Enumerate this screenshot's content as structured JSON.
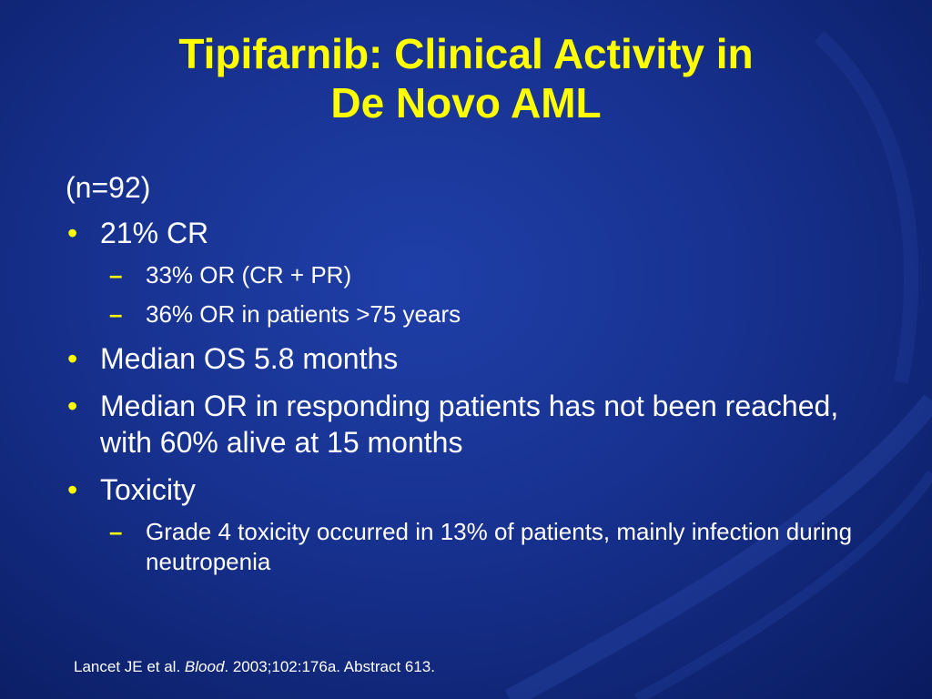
{
  "slide": {
    "title_line1": "Tipifarnib: Clinical Activity in",
    "title_line2": "De Novo AML",
    "intro": "(n=92)",
    "bullets": [
      {
        "text": "21% CR",
        "subitems": [
          "33% OR (CR + PR)",
          "36% OR in patients >75 years"
        ]
      },
      {
        "text": "Median OS 5.8 months"
      },
      {
        "text": "Median OR in responding patients has not been reached, with 60% alive at 15 months"
      },
      {
        "text": "Toxicity",
        "subitems": [
          "Grade 4 toxicity occurred in 13% of patients, mainly infection during neutropenia"
        ]
      }
    ],
    "bullet_glyph": "•",
    "dash_glyph": "–",
    "citation": {
      "authors": "Lancet JE et al.",
      "journal": "Blood",
      "details": ". 2003;102:176a. Abstract 613."
    }
  },
  "colors": {
    "background": "#17318f",
    "title": "#ffff00",
    "text": "#ffffff",
    "bullet": "#ffff00"
  }
}
